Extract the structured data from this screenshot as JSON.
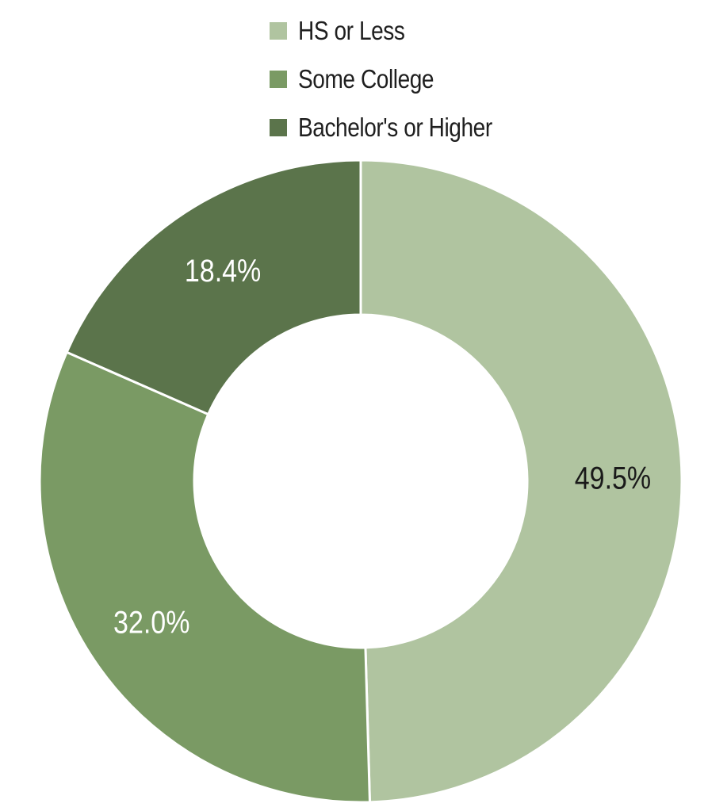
{
  "chart_data": {
    "type": "pie",
    "donut": true,
    "title": "",
    "categories": [
      "HS or Less",
      "Some College",
      "Bachelor's or Higher"
    ],
    "values": [
      49.5,
      32.0,
      18.4
    ],
    "data_labels": [
      "49.5%",
      "32.0%",
      "18.4%"
    ],
    "colors": [
      "#b0c4a0",
      "#7a9a64",
      "#5b744b"
    ],
    "label_colors": [
      "#1a1a1a",
      "#ffffff",
      "#ffffff"
    ],
    "start_angle_deg": 0,
    "direction": "clockwise",
    "legend_position": "top-center"
  }
}
